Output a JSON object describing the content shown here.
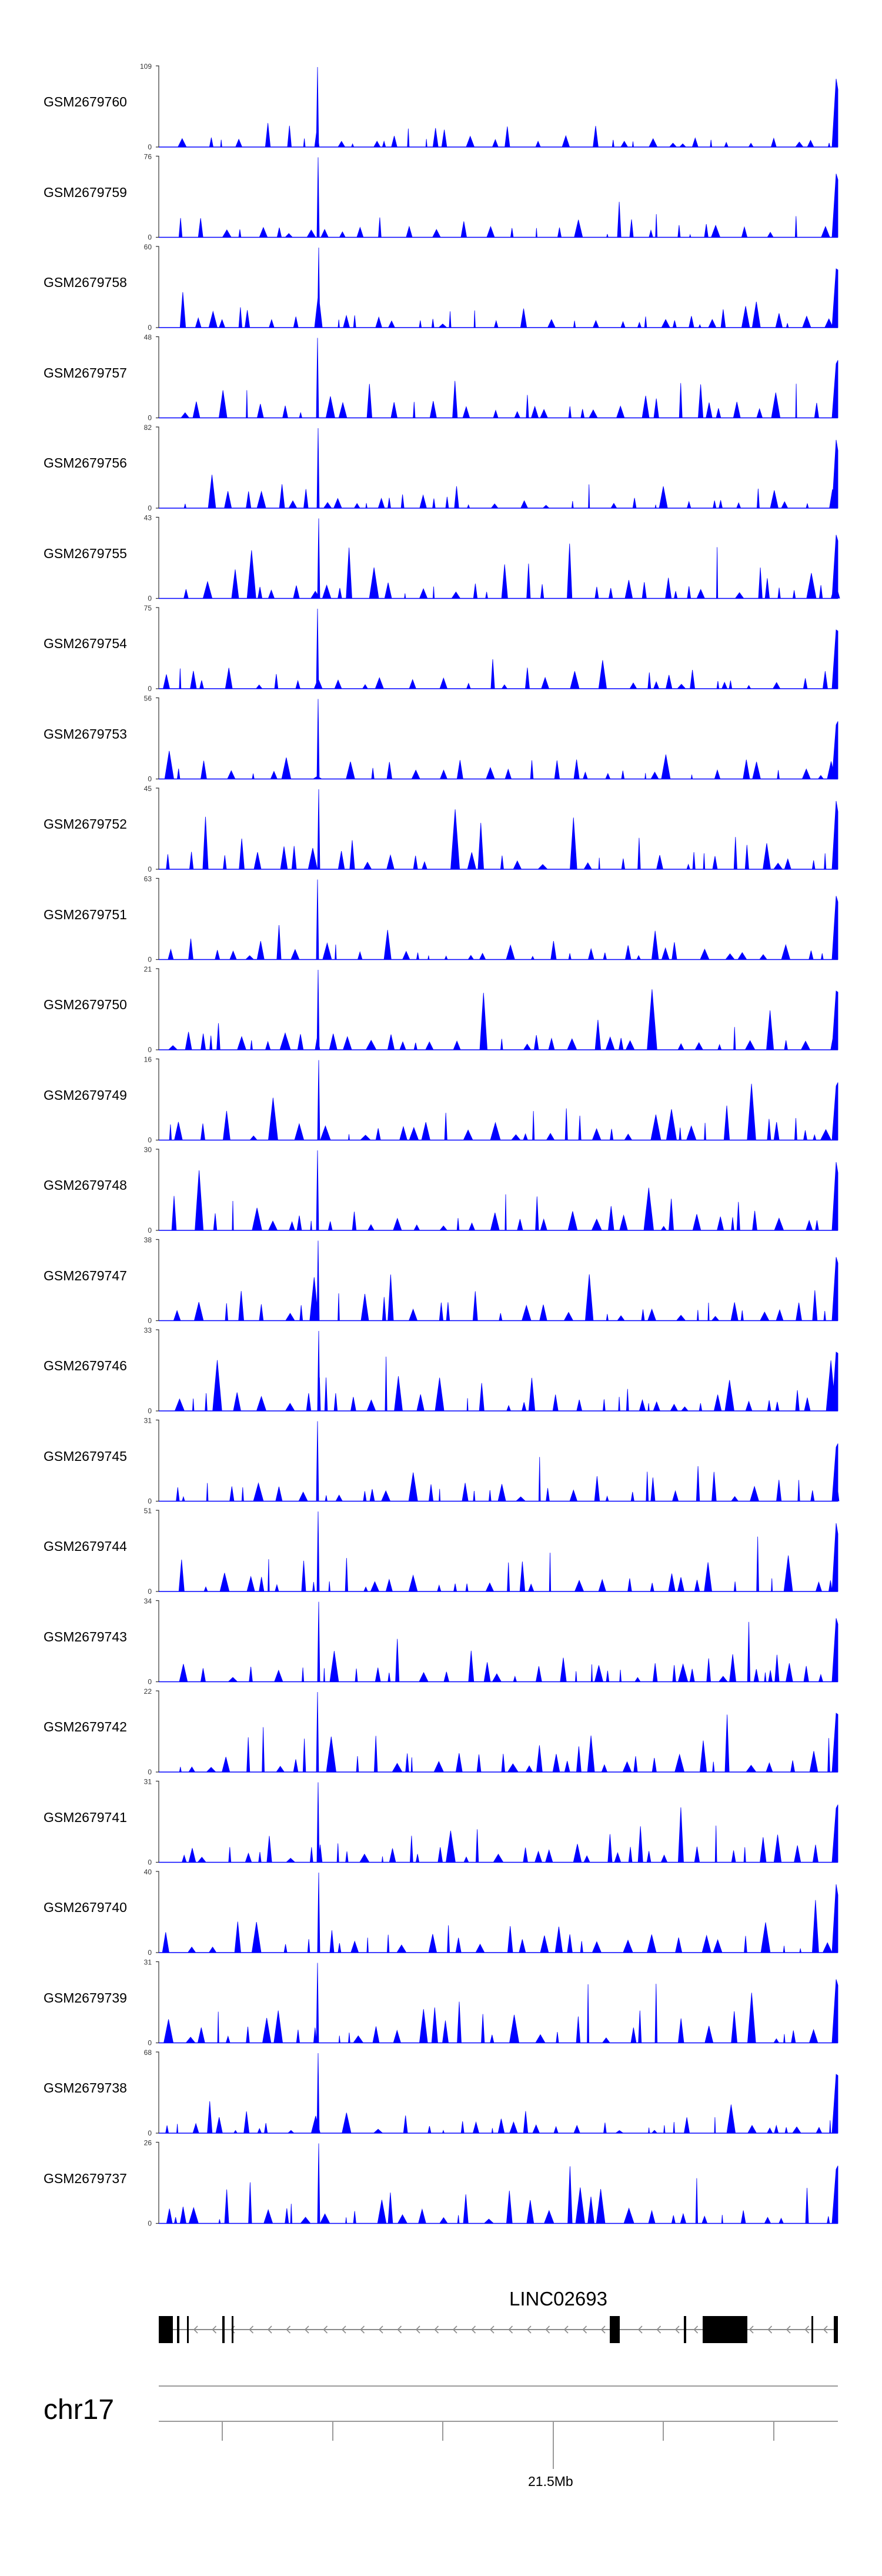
{
  "chart_data": {
    "type": "area",
    "chromosome": "chr17",
    "gene": "LINC02693",
    "position_tick_label": "21.5Mb",
    "color": "#0000ff",
    "tracks": [
      {
        "name": "GSM2679760",
        "ymax": "109",
        "ymin": "0",
        "max": 109
      },
      {
        "name": "GSM2679759",
        "ymax": "76",
        "ymin": "0",
        "max": 76
      },
      {
        "name": "GSM2679758",
        "ymax": "60",
        "ymin": "0",
        "max": 60
      },
      {
        "name": "GSM2679757",
        "ymax": "48",
        "ymin": "0",
        "max": 48
      },
      {
        "name": "GSM2679756",
        "ymax": "82",
        "ymin": "0",
        "max": 82
      },
      {
        "name": "GSM2679755",
        "ymax": "43",
        "ymin": "0",
        "max": 43
      },
      {
        "name": "GSM2679754",
        "ymax": "75",
        "ymin": "0",
        "max": 75
      },
      {
        "name": "GSM2679753",
        "ymax": "56",
        "ymin": "0",
        "max": 56
      },
      {
        "name": "GSM2679752",
        "ymax": "45",
        "ymin": "0",
        "max": 45
      },
      {
        "name": "GSM2679751",
        "ymax": "63",
        "ymin": "0",
        "max": 63
      },
      {
        "name": "GSM2679750",
        "ymax": "21",
        "ymin": "0",
        "max": 21
      },
      {
        "name": "GSM2679749",
        "ymax": "16",
        "ymin": "0",
        "max": 16
      },
      {
        "name": "GSM2679748",
        "ymax": "30",
        "ymin": "0",
        "max": 30
      },
      {
        "name": "GSM2679747",
        "ymax": "38",
        "ymin": "0",
        "max": 38
      },
      {
        "name": "GSM2679746",
        "ymax": "33",
        "ymin": "0",
        "max": 33
      },
      {
        "name": "GSM2679745",
        "ymax": "31",
        "ymin": "0",
        "max": 31
      },
      {
        "name": "GSM2679744",
        "ymax": "51",
        "ymin": "0",
        "max": 51
      },
      {
        "name": "GSM2679743",
        "ymax": "34",
        "ymin": "0",
        "max": 34
      },
      {
        "name": "GSM2679742",
        "ymax": "22",
        "ymin": "0",
        "max": 22
      },
      {
        "name": "GSM2679741",
        "ymax": "31",
        "ymin": "0",
        "max": 31
      },
      {
        "name": "GSM2679740",
        "ymax": "40",
        "ymin": "0",
        "max": 40
      },
      {
        "name": "GSM2679739",
        "ymax": "31",
        "ymin": "0",
        "max": 31
      },
      {
        "name": "GSM2679738",
        "ymax": "68",
        "ymin": "0",
        "max": 68
      },
      {
        "name": "GSM2679737",
        "ymax": "26",
        "ymin": "0",
        "max": 26
      }
    ]
  }
}
